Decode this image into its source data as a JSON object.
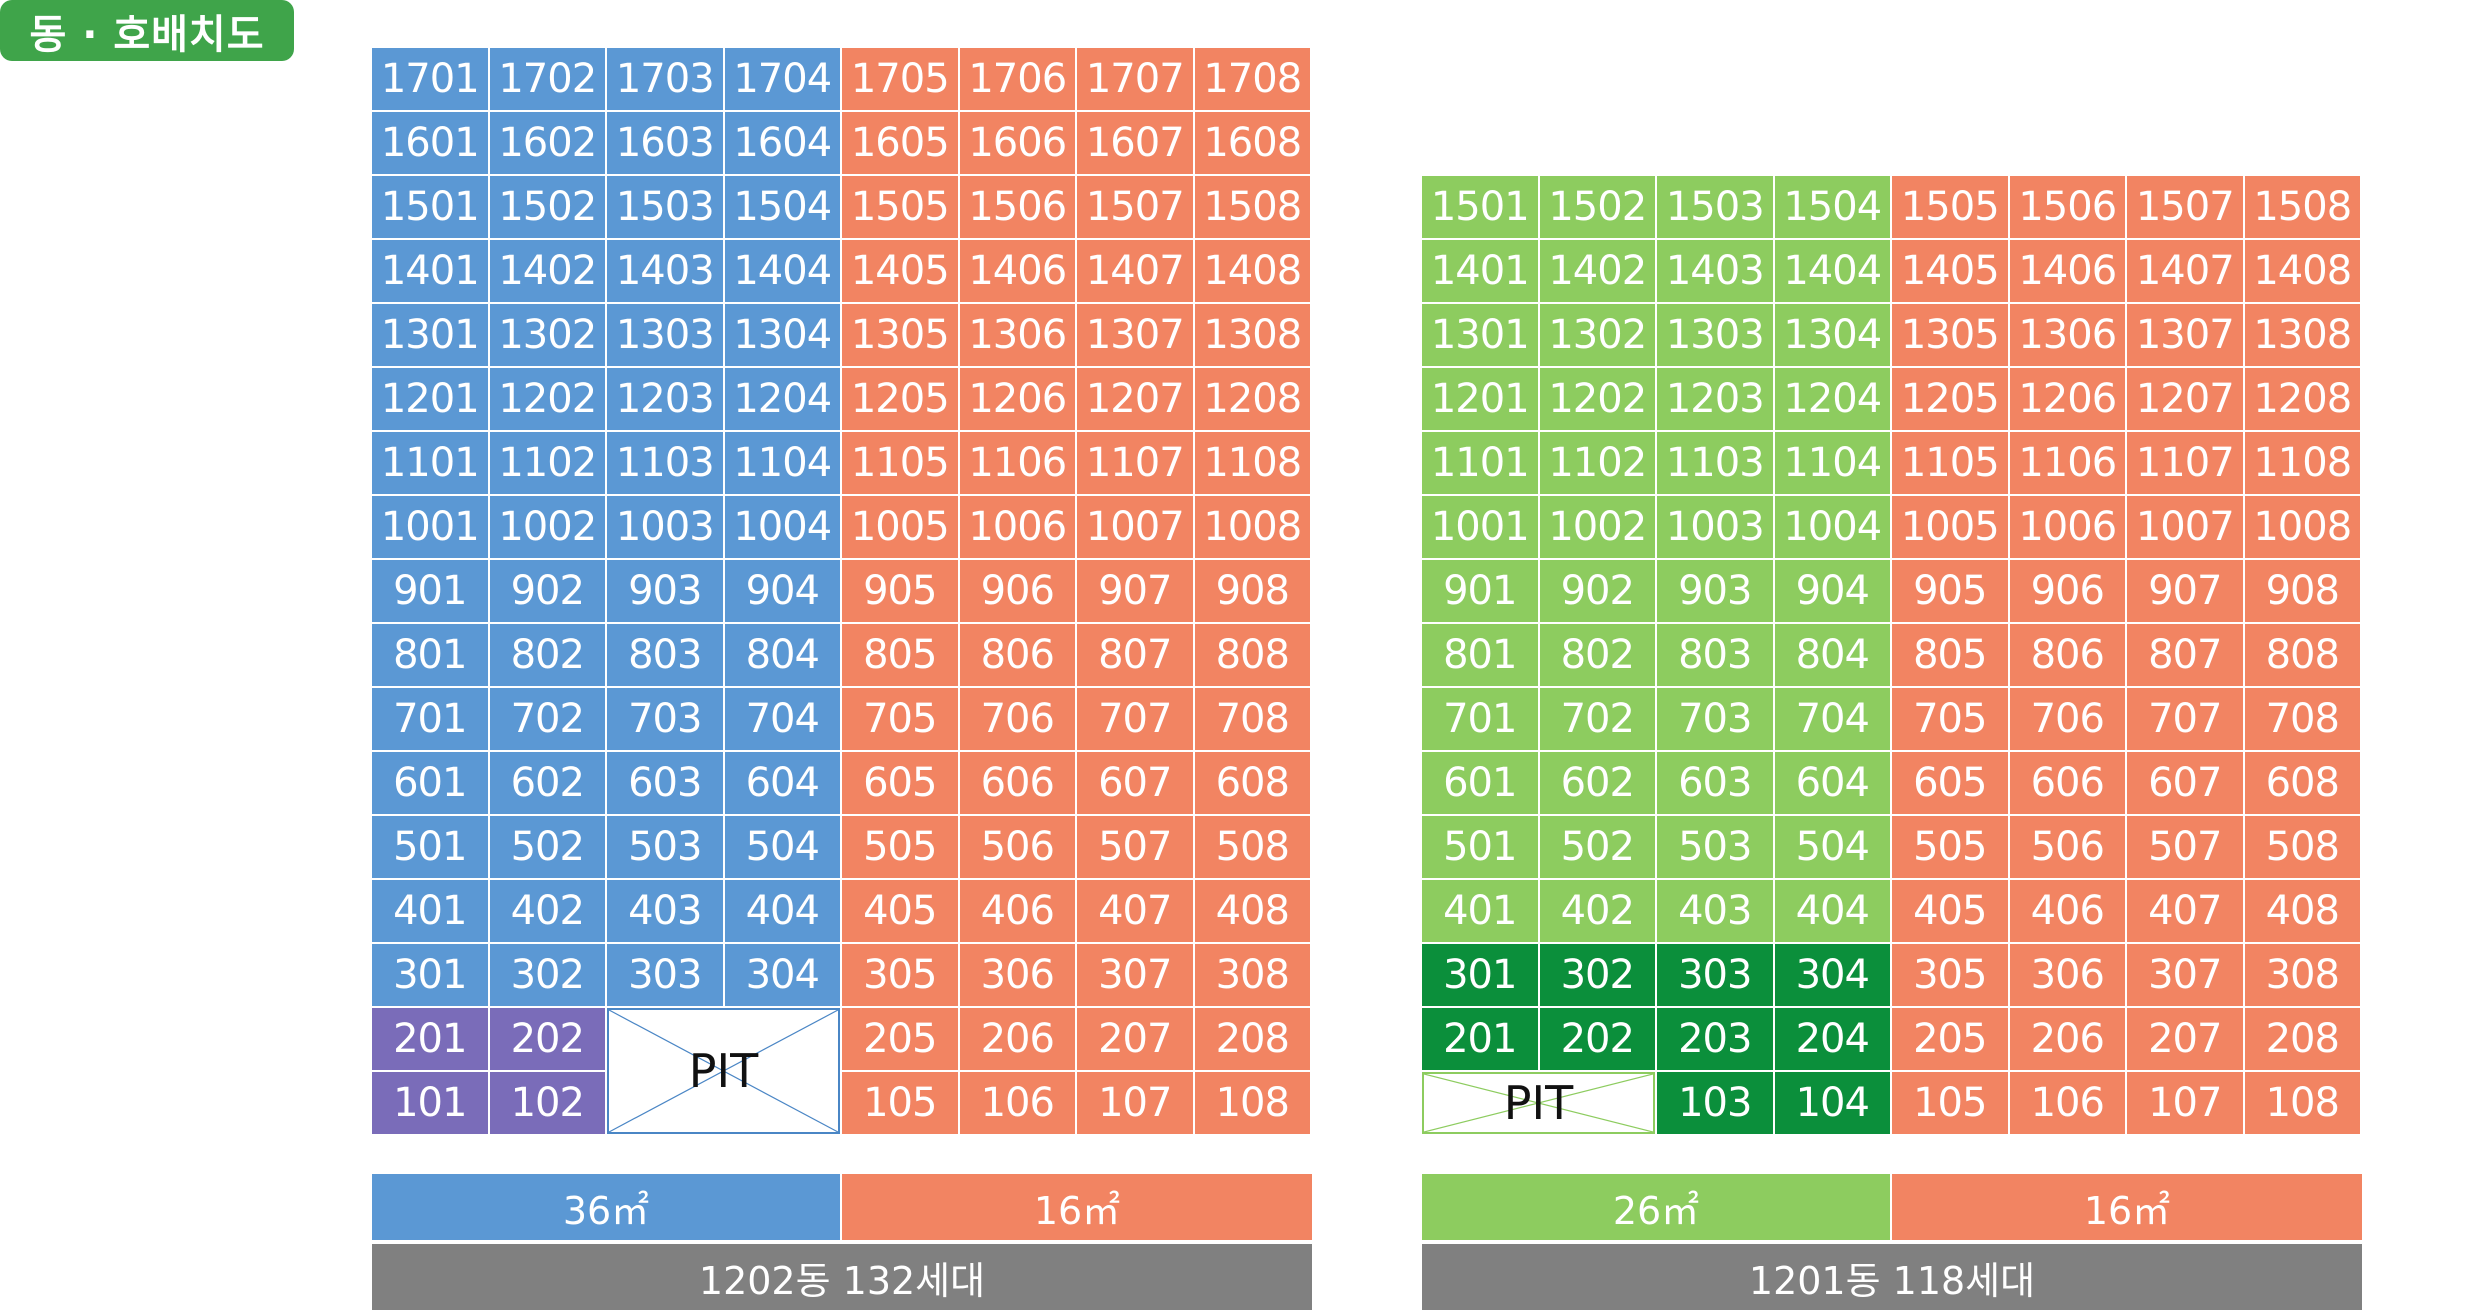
{
  "title": "동 · 호배치도",
  "colors": {
    "badge": "#3fa44a",
    "blue": "#5b98d4",
    "orange": "#f28462",
    "purple": "#7a6cb9",
    "light_green": "#8dcc5f",
    "dark_green": "#0b8f3b",
    "footer": "#808080",
    "pit_line_blue": "#4a86c5",
    "pit_line_green": "#8dcc5f"
  },
  "buildings": [
    {
      "id": "1202",
      "floors": [
        17,
        16,
        15,
        14,
        13,
        12,
        11,
        10,
        9,
        8,
        7,
        6,
        5,
        4,
        3,
        2,
        1
      ],
      "units_per_floor": 8,
      "cells": [
        {
          "floor": 17,
          "units": [
            "1701",
            "1702",
            "1703",
            "1704",
            "1705",
            "1706",
            "1707",
            "1708"
          ],
          "colors": [
            "blue",
            "blue",
            "blue",
            "blue",
            "orange",
            "orange",
            "orange",
            "orange"
          ]
        },
        {
          "floor": 16,
          "units": [
            "1601",
            "1602",
            "1603",
            "1604",
            "1605",
            "1606",
            "1607",
            "1608"
          ],
          "colors": [
            "blue",
            "blue",
            "blue",
            "blue",
            "orange",
            "orange",
            "orange",
            "orange"
          ]
        },
        {
          "floor": 15,
          "units": [
            "1501",
            "1502",
            "1503",
            "1504",
            "1505",
            "1506",
            "1507",
            "1508"
          ],
          "colors": [
            "blue",
            "blue",
            "blue",
            "blue",
            "orange",
            "orange",
            "orange",
            "orange"
          ]
        },
        {
          "floor": 14,
          "units": [
            "1401",
            "1402",
            "1403",
            "1404",
            "1405",
            "1406",
            "1407",
            "1408"
          ],
          "colors": [
            "blue",
            "blue",
            "blue",
            "blue",
            "orange",
            "orange",
            "orange",
            "orange"
          ]
        },
        {
          "floor": 13,
          "units": [
            "1301",
            "1302",
            "1303",
            "1304",
            "1305",
            "1306",
            "1307",
            "1308"
          ],
          "colors": [
            "blue",
            "blue",
            "blue",
            "blue",
            "orange",
            "orange",
            "orange",
            "orange"
          ]
        },
        {
          "floor": 12,
          "units": [
            "1201",
            "1202",
            "1203",
            "1204",
            "1205",
            "1206",
            "1207",
            "1208"
          ],
          "colors": [
            "blue",
            "blue",
            "blue",
            "blue",
            "orange",
            "orange",
            "orange",
            "orange"
          ]
        },
        {
          "floor": 11,
          "units": [
            "1101",
            "1102",
            "1103",
            "1104",
            "1105",
            "1106",
            "1107",
            "1108"
          ],
          "colors": [
            "blue",
            "blue",
            "blue",
            "blue",
            "orange",
            "orange",
            "orange",
            "orange"
          ]
        },
        {
          "floor": 10,
          "units": [
            "1001",
            "1002",
            "1003",
            "1004",
            "1005",
            "1006",
            "1007",
            "1008"
          ],
          "colors": [
            "blue",
            "blue",
            "blue",
            "blue",
            "orange",
            "orange",
            "orange",
            "orange"
          ]
        },
        {
          "floor": 9,
          "units": [
            "901",
            "902",
            "903",
            "904",
            "905",
            "906",
            "907",
            "908"
          ],
          "colors": [
            "blue",
            "blue",
            "blue",
            "blue",
            "orange",
            "orange",
            "orange",
            "orange"
          ]
        },
        {
          "floor": 8,
          "units": [
            "801",
            "802",
            "803",
            "804",
            "805",
            "806",
            "807",
            "808"
          ],
          "colors": [
            "blue",
            "blue",
            "blue",
            "blue",
            "orange",
            "orange",
            "orange",
            "orange"
          ]
        },
        {
          "floor": 7,
          "units": [
            "701",
            "702",
            "703",
            "704",
            "705",
            "706",
            "707",
            "708"
          ],
          "colors": [
            "blue",
            "blue",
            "blue",
            "blue",
            "orange",
            "orange",
            "orange",
            "orange"
          ]
        },
        {
          "floor": 6,
          "units": [
            "601",
            "602",
            "603",
            "604",
            "605",
            "606",
            "607",
            "608"
          ],
          "colors": [
            "blue",
            "blue",
            "blue",
            "blue",
            "orange",
            "orange",
            "orange",
            "orange"
          ]
        },
        {
          "floor": 5,
          "units": [
            "501",
            "502",
            "503",
            "504",
            "505",
            "506",
            "507",
            "508"
          ],
          "colors": [
            "blue",
            "blue",
            "blue",
            "blue",
            "orange",
            "orange",
            "orange",
            "orange"
          ]
        },
        {
          "floor": 4,
          "units": [
            "401",
            "402",
            "403",
            "404",
            "405",
            "406",
            "407",
            "408"
          ],
          "colors": [
            "blue",
            "blue",
            "blue",
            "blue",
            "orange",
            "orange",
            "orange",
            "orange"
          ]
        },
        {
          "floor": 3,
          "units": [
            "301",
            "302",
            "303",
            "304",
            "305",
            "306",
            "307",
            "308"
          ],
          "colors": [
            "blue",
            "blue",
            "blue",
            "blue",
            "orange",
            "orange",
            "orange",
            "orange"
          ]
        },
        {
          "floor": 2,
          "units": [
            "201",
            "202",
            null,
            null,
            "205",
            "206",
            "207",
            "208"
          ],
          "colors": [
            "purple",
            "purple",
            null,
            null,
            "orange",
            "orange",
            "orange",
            "orange"
          ]
        },
        {
          "floor": 1,
          "units": [
            "101",
            "102",
            null,
            null,
            "105",
            "106",
            "107",
            "108"
          ],
          "colors": [
            "purple",
            "purple",
            null,
            null,
            "orange",
            "orange",
            "orange",
            "orange"
          ]
        }
      ],
      "pit": {
        "label": "PIT",
        "floors": [
          2,
          1
        ],
        "columns": [
          2,
          3
        ],
        "line_color": "pit_line_blue"
      },
      "legend": [
        {
          "label": "36㎡",
          "span": 4,
          "color": "blue"
        },
        {
          "label": "16㎡",
          "span": 4,
          "color": "orange"
        }
      ],
      "footer": "1202동 132세대"
    },
    {
      "id": "1201",
      "units_per_floor": 8,
      "cells": [
        {
          "floor": 15,
          "units": [
            "1501",
            "1502",
            "1503",
            "1504",
            "1505",
            "1506",
            "1507",
            "1508"
          ],
          "colors": [
            "light_green",
            "light_green",
            "light_green",
            "light_green",
            "orange",
            "orange",
            "orange",
            "orange"
          ]
        },
        {
          "floor": 14,
          "units": [
            "1401",
            "1402",
            "1403",
            "1404",
            "1405",
            "1406",
            "1407",
            "1408"
          ],
          "colors": [
            "light_green",
            "light_green",
            "light_green",
            "light_green",
            "orange",
            "orange",
            "orange",
            "orange"
          ]
        },
        {
          "floor": 13,
          "units": [
            "1301",
            "1302",
            "1303",
            "1304",
            "1305",
            "1306",
            "1307",
            "1308"
          ],
          "colors": [
            "light_green",
            "light_green",
            "light_green",
            "light_green",
            "orange",
            "orange",
            "orange",
            "orange"
          ]
        },
        {
          "floor": 12,
          "units": [
            "1201",
            "1202",
            "1203",
            "1204",
            "1205",
            "1206",
            "1207",
            "1208"
          ],
          "colors": [
            "light_green",
            "light_green",
            "light_green",
            "light_green",
            "orange",
            "orange",
            "orange",
            "orange"
          ]
        },
        {
          "floor": 11,
          "units": [
            "1101",
            "1102",
            "1103",
            "1104",
            "1105",
            "1106",
            "1107",
            "1108"
          ],
          "colors": [
            "light_green",
            "light_green",
            "light_green",
            "light_green",
            "orange",
            "orange",
            "orange",
            "orange"
          ]
        },
        {
          "floor": 10,
          "units": [
            "1001",
            "1002",
            "1003",
            "1004",
            "1005",
            "1006",
            "1007",
            "1008"
          ],
          "colors": [
            "light_green",
            "light_green",
            "light_green",
            "light_green",
            "orange",
            "orange",
            "orange",
            "orange"
          ]
        },
        {
          "floor": 9,
          "units": [
            "901",
            "902",
            "903",
            "904",
            "905",
            "906",
            "907",
            "908"
          ],
          "colors": [
            "light_green",
            "light_green",
            "light_green",
            "light_green",
            "orange",
            "orange",
            "orange",
            "orange"
          ]
        },
        {
          "floor": 8,
          "units": [
            "801",
            "802",
            "803",
            "804",
            "805",
            "806",
            "807",
            "808"
          ],
          "colors": [
            "light_green",
            "light_green",
            "light_green",
            "light_green",
            "orange",
            "orange",
            "orange",
            "orange"
          ]
        },
        {
          "floor": 7,
          "units": [
            "701",
            "702",
            "703",
            "704",
            "705",
            "706",
            "707",
            "708"
          ],
          "colors": [
            "light_green",
            "light_green",
            "light_green",
            "light_green",
            "orange",
            "orange",
            "orange",
            "orange"
          ]
        },
        {
          "floor": 6,
          "units": [
            "601",
            "602",
            "603",
            "604",
            "605",
            "606",
            "607",
            "608"
          ],
          "colors": [
            "light_green",
            "light_green",
            "light_green",
            "light_green",
            "orange",
            "orange",
            "orange",
            "orange"
          ]
        },
        {
          "floor": 5,
          "units": [
            "501",
            "502",
            "503",
            "504",
            "505",
            "506",
            "507",
            "508"
          ],
          "colors": [
            "light_green",
            "light_green",
            "light_green",
            "light_green",
            "orange",
            "orange",
            "orange",
            "orange"
          ]
        },
        {
          "floor": 4,
          "units": [
            "401",
            "402",
            "403",
            "404",
            "405",
            "406",
            "407",
            "408"
          ],
          "colors": [
            "light_green",
            "light_green",
            "light_green",
            "light_green",
            "orange",
            "orange",
            "orange",
            "orange"
          ]
        },
        {
          "floor": 3,
          "units": [
            "301",
            "302",
            "303",
            "304",
            "305",
            "306",
            "307",
            "308"
          ],
          "colors": [
            "dark_green",
            "dark_green",
            "dark_green",
            "dark_green",
            "orange",
            "orange",
            "orange",
            "orange"
          ]
        },
        {
          "floor": 2,
          "units": [
            "201",
            "202",
            "203",
            "204",
            "205",
            "206",
            "207",
            "208"
          ],
          "colors": [
            "dark_green",
            "dark_green",
            "dark_green",
            "dark_green",
            "orange",
            "orange",
            "orange",
            "orange"
          ]
        },
        {
          "floor": 1,
          "units": [
            null,
            null,
            "103",
            "104",
            "105",
            "106",
            "107",
            "108"
          ],
          "colors": [
            null,
            null,
            "dark_green",
            "dark_green",
            "orange",
            "orange",
            "orange",
            "orange"
          ]
        }
      ],
      "pit": {
        "label": "PIT",
        "floors": [
          1
        ],
        "columns": [
          0,
          1
        ],
        "line_color": "pit_line_green"
      },
      "legend": [
        {
          "label": "26㎡",
          "span": 4,
          "color": "light_green"
        },
        {
          "label": "16㎡",
          "span": 4,
          "color": "orange"
        }
      ],
      "footer": "1201동 118세대"
    }
  ]
}
